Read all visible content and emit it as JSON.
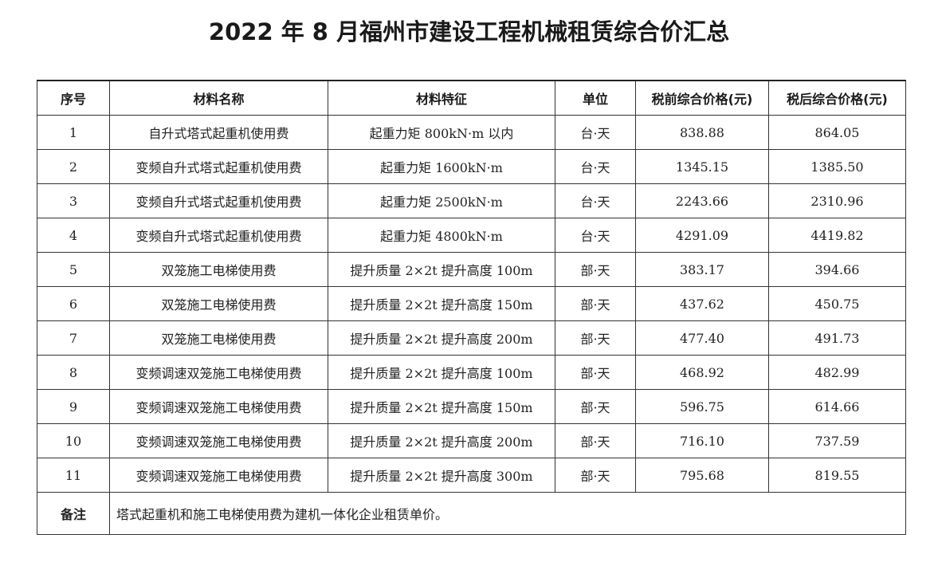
{
  "title": "2022 年 8 月福州市建设工程机械租赁综合价汇总",
  "headers": [
    "序号",
    "材料名称",
    "材料特征",
    "单位",
    "税前综合价格(元)",
    "税后综合价格(元)"
  ],
  "rows": [
    [
      "1",
      "自升式塔式起重机使用费",
      "起重力矩 800kN·m 以内",
      "台·天",
      "838.88",
      "864.05"
    ],
    [
      "2",
      "变频自升式塔式起重机使用费",
      "起重力矩 1600kN·m",
      "台·天",
      "1345.15",
      "1385.50"
    ],
    [
      "3",
      "变频自升式塔式起重机使用费",
      "起重力矩 2500kN·m",
      "台·天",
      "2243.66",
      "2310.96"
    ],
    [
      "4",
      "变频自升式塔式起重机使用费",
      "起重力矩 4800kN·m",
      "台·天",
      "4291.09",
      "4419.82"
    ],
    [
      "5",
      "双笼施工电梯使用费",
      "提升质量 2×2t 提升高度 100m",
      "部·天",
      "383.17",
      "394.66"
    ],
    [
      "6",
      "双笼施工电梯使用费",
      "提升质量 2×2t 提升高度 150m",
      "部·天",
      "437.62",
      "450.75"
    ],
    [
      "7",
      "双笼施工电梯使用费",
      "提升质量 2×2t 提升高度 200m",
      "部·天",
      "477.40",
      "491.73"
    ],
    [
      "8",
      "变频调速双笼施工电梯使用费",
      "提升质量 2×2t 提升高度 100m",
      "部·天",
      "468.92",
      "482.99"
    ],
    [
      "9",
      "变频调速双笼施工电梯使用费",
      "提升质量 2×2t 提升高度 150m",
      "部·天",
      "596.75",
      "614.66"
    ],
    [
      "10",
      "变频调速双笼施工电梯使用费",
      "提升质量 2×2t 提升高度 200m",
      "部·天",
      "716.10",
      "737.59"
    ],
    [
      "11",
      "变频调速双笼施工电梯使用费",
      "提升质量 2×2t 提升高度 300m",
      "部·天",
      "795.68",
      "819.55"
    ]
  ],
  "note": {
    "label": "备注",
    "text": "塔式起重机和施工电梯使用费为建机一体化企业租赁单价。"
  }
}
